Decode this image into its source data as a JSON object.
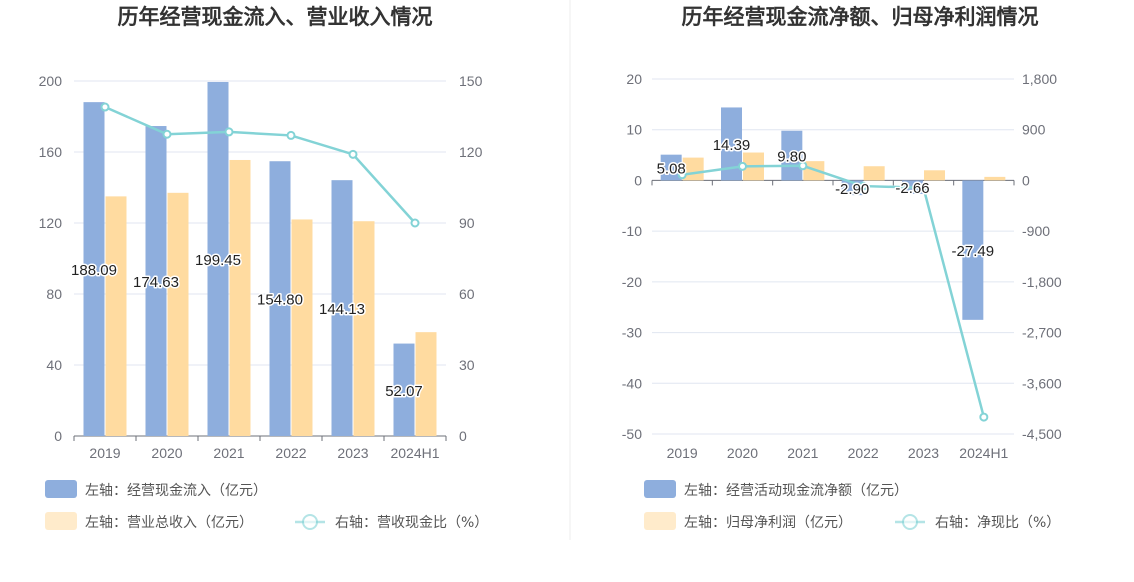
{
  "chart_data": [
    {
      "type": "bar",
      "title": "历年经营现金流入、营业收入情况",
      "categories": [
        "2019",
        "2020",
        "2021",
        "2022",
        "2023",
        "2024H1"
      ],
      "y_left": {
        "min": 0,
        "max": 200,
        "ticks": [
          "0",
          "40",
          "80",
          "120",
          "160",
          "200"
        ]
      },
      "y_right": {
        "min": 0,
        "max": 150,
        "ticks": [
          "0",
          "30",
          "60",
          "90",
          "120",
          "150"
        ]
      },
      "series": [
        {
          "name": "左轴：经营现金流入（亿元）",
          "kind": "bar",
          "axis": "left",
          "color": "#8eaedd",
          "values": [
            188.09,
            174.63,
            199.45,
            154.8,
            144.13,
            52.07
          ],
          "labels": [
            "188.09",
            "174.63",
            "199.45",
            "154.80",
            "144.13",
            "52.07"
          ]
        },
        {
          "name": "左轴：营业总收入（亿元）",
          "kind": "bar",
          "axis": "left",
          "color": "#ffdba0",
          "values": [
            135,
            137,
            155.5,
            122,
            121,
            58.5
          ]
        },
        {
          "name": "右轴：营收现金比（%）",
          "kind": "line",
          "axis": "right",
          "color": "#83d3d6",
          "values": [
            139,
            127.5,
            128.5,
            127,
            119,
            90
          ]
        }
      ]
    },
    {
      "type": "bar",
      "title": "历年经营现金流净额、归母净利润情况",
      "categories": [
        "2019",
        "2020",
        "2021",
        "2022",
        "2023",
        "2024H1"
      ],
      "y_left": {
        "min": -50,
        "max": 20,
        "ticks": [
          "-50",
          "-40",
          "-30",
          "-20",
          "-10",
          "0",
          "10",
          "20"
        ]
      },
      "y_right": {
        "min": -4500,
        "max": 1800,
        "ticks": [
          "-4,500",
          "-3,600",
          "-2,700",
          "-1,800",
          "-900",
          "0",
          "900",
          "1,800"
        ]
      },
      "series": [
        {
          "name": "左轴：经营活动现金流净额（亿元）",
          "kind": "bar",
          "axis": "left",
          "color": "#8eaedd",
          "values": [
            5.08,
            14.39,
            9.8,
            -2.9,
            -2.66,
            -27.49
          ],
          "labels": [
            "5.08",
            "14.39",
            "9.80",
            "-2.90",
            "-2.66",
            "-27.49"
          ]
        },
        {
          "name": "左轴：归母净利润（亿元）",
          "kind": "bar",
          "axis": "left",
          "color": "#ffdba0",
          "values": [
            4.5,
            5.5,
            3.8,
            2.8,
            2.0,
            0.7
          ]
        },
        {
          "name": "右轴：净现比（%）",
          "kind": "line",
          "axis": "right",
          "color": "#83d3d6",
          "values": [
            100,
            250,
            260,
            -100,
            -130,
            -4200
          ]
        }
      ]
    }
  ]
}
